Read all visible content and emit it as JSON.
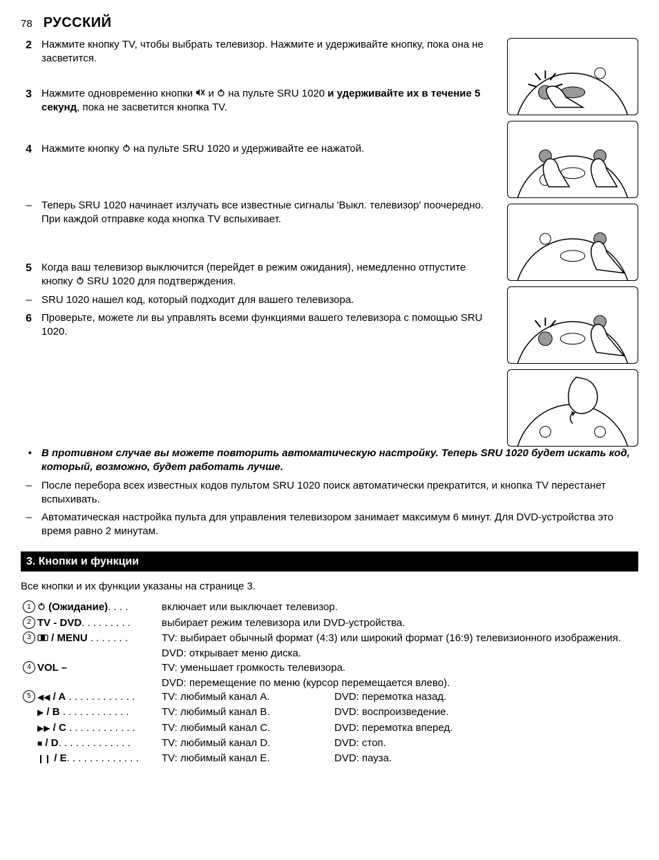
{
  "header": {
    "page_no": "78",
    "language": "РУССКИЙ"
  },
  "steps": {
    "s2": "Нажмите кнопку TV, чтобы выбрать телевизор. Нажмите и удерживайте кнопку, пока она не засветится.",
    "s3_a": "Нажмите одновременно кнопки ",
    "s3_b": " и ",
    "s3_c": " на пульте SRU 1020 ",
    "s3_bold": "и удерживайте их в течение 5 секунд",
    "s3_d": ", пока не засветится кнопка TV.",
    "s4_a": "Нажмите кнопку ",
    "s4_b": " на пульте SRU 1020 и удерживайте ее нажатой.",
    "dash1": "Теперь SRU 1020 начинает излучать все известные сигналы 'Выкл. телевизор' поочередно. При каждой отправке кода кнопка TV вспыхивает.",
    "s5_a": "Когда ваш телевизор выключится (перейдет в режим ожидания), немедленно отпустите кнопку ",
    "s5_b": " SRU 1020 для подтверждения.",
    "dash2": "SRU 1020 нашел код, который подходит для вашего телевизора.",
    "s6": "Проверьте, можете ли вы управлять всеми функциями вашего телевизора с помощью SRU 1020.",
    "bullet1": "В противном случае вы можете повторить автоматическую настройку. Теперь SRU 1020 будет искать код, который, возможно, будет работать лучше.",
    "dash3": "После перебора всех известных кодов пультом SRU 1020 поиск автоматически прекратится, и кнопка TV перестанет вспыхивать.",
    "dash4": "Автоматическая настройка пульта для управления телевизором занимает максимум 6 минут. Для DVD-устройства это время равно 2 минутам."
  },
  "section": {
    "title": "3. Кнопки и функции",
    "intro": "Все кнопки и их функции указаны на странице 3."
  },
  "functions": {
    "f1": {
      "label": " (Ожидание)",
      "dots": ". . . .",
      "desc": "включает или выключает телевизор."
    },
    "f2": {
      "label": "TV - DVD",
      "dots": ". . . . . . . . .",
      "desc": "выбирает режим телевизора или DVD-устройства."
    },
    "f3": {
      "label": " / MENU",
      "dots": " . . . . . . .",
      "desc1": "TV: выбирает обычный формат (4:3) или широкий формат (16:9) телевизионного изображения.",
      "desc2": "DVD: открывает меню диска."
    },
    "f4": {
      "label": "VOL –",
      "desc1": "TV: уменьшает громкость телевизора.",
      "desc2": "DVD: перемещение по меню (курсор перемещается влево)."
    },
    "f5": {
      "rows": [
        {
          "sym": "◀◀",
          "letter": " / A",
          "dots": " . . . . . . . . . . . .",
          "tv": "TV: любимый канал A.",
          "dvd": "DVD: перемотка назад."
        },
        {
          "sym": "▶",
          "letter": " / B",
          "dots": " . . . . . . . . . . . .",
          "tv": "TV: любимый канал B.",
          "dvd": "DVD: воспроизведение."
        },
        {
          "sym": "▶▶",
          "letter": " / C",
          "dots": " . . . . . . . . . . . .",
          "tv": "TV: любимый канал C.",
          "dvd": "DVD: перемотка вперед."
        },
        {
          "sym": "■",
          "letter": " / D",
          "dots": ". . . . . . . . . . . . .",
          "tv": "TV: любимый канал D.",
          "dvd": "DVD: стоп."
        },
        {
          "sym": "❙❙",
          "letter": " / E",
          "dots": ". . . . . . . . . . . . .",
          "tv": "TV: любимый канал E.",
          "dvd": "DVD: пауза."
        }
      ]
    }
  },
  "icons": {
    "mute": "🔇",
    "power": "⏻",
    "format": "⦿"
  }
}
